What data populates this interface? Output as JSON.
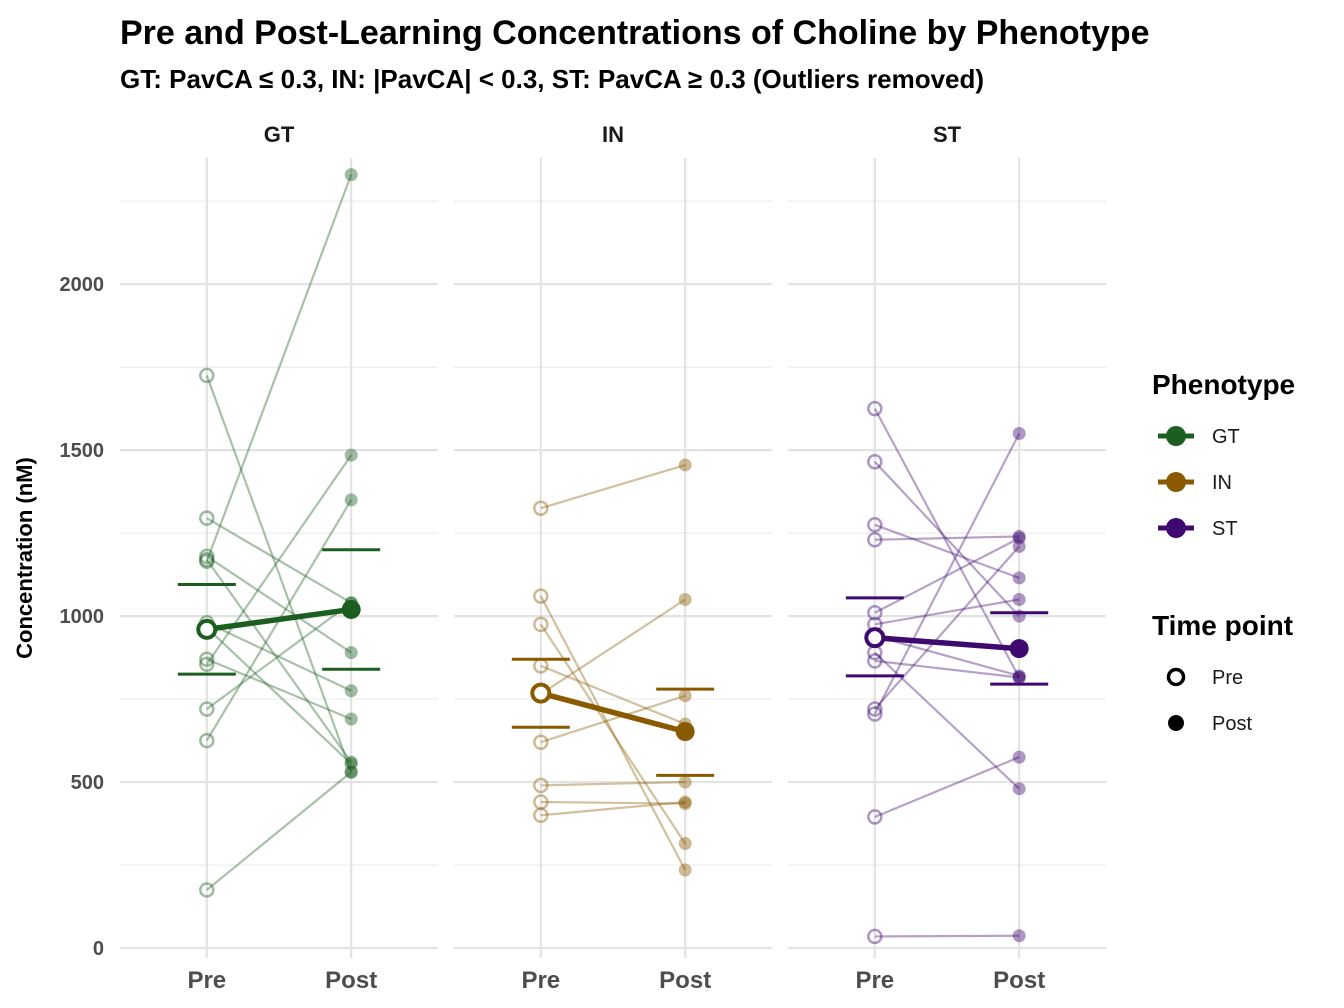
{
  "chart_data": {
    "type": "line",
    "title": "Pre and Post-Learning Concentrations of Choline by Phenotype",
    "subtitle": "GT: PavCA ≤ 0.3, IN: |PavCA| < 0.3, ST: PavCA ≥ 0.3 (Outliers removed)",
    "ylabel": "Concentration (nM)",
    "ylim": [
      -30,
      2380
    ],
    "yticks": [
      0,
      500,
      1000,
      1500,
      2000
    ],
    "categories": [
      "Pre",
      "Post"
    ],
    "grid": true,
    "legend_position": "right",
    "facets": [
      {
        "name": "GT",
        "color": "#1b5e20",
        "pairs": [
          [
            175,
            530
          ],
          [
            625,
            1350
          ],
          [
            720,
            1040
          ],
          [
            855,
            1485
          ],
          [
            870,
            690
          ],
          [
            965,
            555
          ],
          [
            980,
            775
          ],
          [
            1170,
            560
          ],
          [
            1180,
            890
          ],
          [
            1295,
            1040
          ],
          [
            1725,
            530
          ],
          [
            1165,
            2330
          ]
        ],
        "mean": [
          960,
          1020
        ],
        "error": [
          [
            825,
            1095
          ],
          [
            840,
            1200
          ]
        ]
      },
      {
        "name": "IN",
        "color": "#8a5a00",
        "pairs": [
          [
            400,
            440
          ],
          [
            440,
            435
          ],
          [
            490,
            500
          ],
          [
            620,
            760
          ],
          [
            765,
            1050
          ],
          [
            850,
            675
          ],
          [
            975,
            315
          ],
          [
            1060,
            235
          ],
          [
            1325,
            1455
          ]
        ],
        "mean": [
          768,
          652
        ],
        "error": [
          [
            665,
            870
          ],
          [
            520,
            780
          ]
        ]
      },
      {
        "name": "ST",
        "color": "#3f0a70",
        "pairs": [
          [
            35,
            37
          ],
          [
            395,
            575
          ],
          [
            705,
            1550
          ],
          [
            720,
            1210
          ],
          [
            865,
            815
          ],
          [
            890,
            480
          ],
          [
            940,
            820
          ],
          [
            975,
            1050
          ],
          [
            1010,
            1235
          ],
          [
            1230,
            1240
          ],
          [
            1275,
            1115
          ],
          [
            1465,
            1000
          ],
          [
            1625,
            815
          ]
        ],
        "mean": [
          935,
          902
        ],
        "error": [
          [
            820,
            1055
          ],
          [
            795,
            1010
          ]
        ]
      }
    ],
    "legend": {
      "phenotype_title": "Phenotype",
      "phenotypes": [
        "GT",
        "IN",
        "ST"
      ],
      "time_title": "Time point",
      "time_points": [
        "Pre",
        "Post"
      ]
    }
  }
}
